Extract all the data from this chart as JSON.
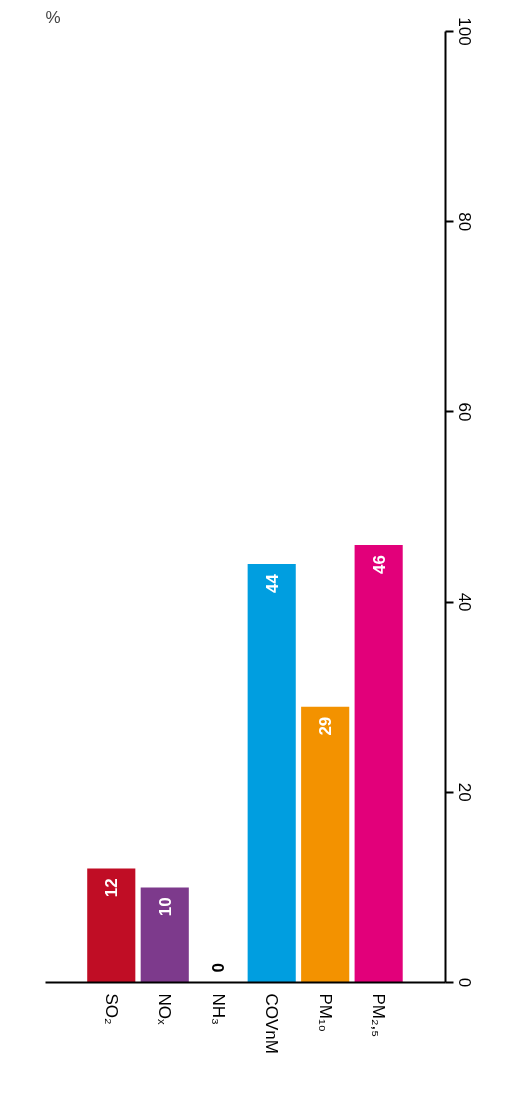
{
  "chart_data": {
    "type": "bar",
    "ylabel": "%",
    "categories": [
      "SO₂",
      "NOₓ",
      "NH₃",
      "COVnM",
      "PM₁₀",
      "PM₂,₅"
    ],
    "values": [
      12,
      10,
      0,
      44,
      29,
      46
    ],
    "colors": [
      "#c00d25",
      "#7d3a8c",
      "#ffffff",
      "#009ee0",
      "#f39200",
      "#e2007a"
    ],
    "ylim": [
      0,
      100
    ],
    "yticks": [
      0,
      20,
      40,
      60,
      80,
      100
    ],
    "grid": false,
    "data_labels": true
  }
}
